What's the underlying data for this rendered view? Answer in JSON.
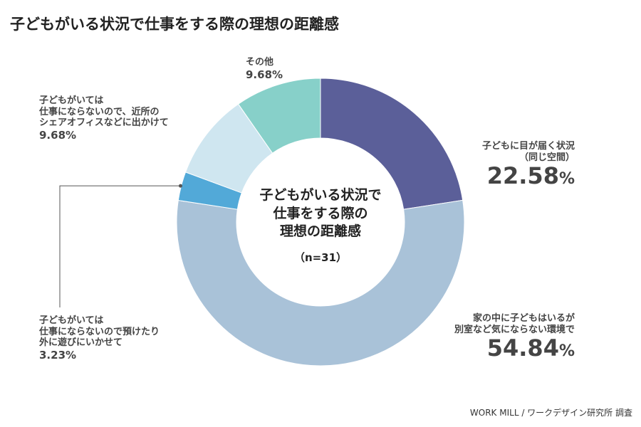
{
  "title": "子どもがいる状況で仕事をする際の理想の距離感",
  "center": {
    "title_lines": [
      "子どもがいる状況で",
      "仕事をする際の",
      "理想の距離感"
    ],
    "sample": "（n=31）"
  },
  "chart_data": {
    "type": "pie",
    "donut": true,
    "title": "子どもがいる状況で仕事をする際の理想の距離感",
    "series": [
      {
        "label_lines": [
          "子どもに目が届く状況",
          "（同じ空間）"
        ],
        "value": 22.58,
        "value_text": "22.58",
        "color": "#5b5f99"
      },
      {
        "label_lines": [
          "家の中に子どもはいるが",
          "別室など気にならない環境で"
        ],
        "value": 54.84,
        "value_text": "54.84",
        "color": "#a9c2d8"
      },
      {
        "label_lines": [
          "子どもがいては",
          "仕事にならないので預けたり",
          "外に遊びにいかせて"
        ],
        "value": 3.23,
        "value_text": "3.23",
        "color": "#52a9d8"
      },
      {
        "label_lines": [
          "子どもがいては",
          "仕事にならないので、近所の",
          "シェアオフィスなどに出かけて"
        ],
        "value": 9.68,
        "value_text": "9.68",
        "color": "#cfe6f0"
      },
      {
        "label_lines": [
          "その他"
        ],
        "value": 9.68,
        "value_text": "9.68",
        "color": "#87d0c9"
      }
    ],
    "percent_sign": "%"
  },
  "source": "WORK MILL / ワークデザイン研究所 調査"
}
